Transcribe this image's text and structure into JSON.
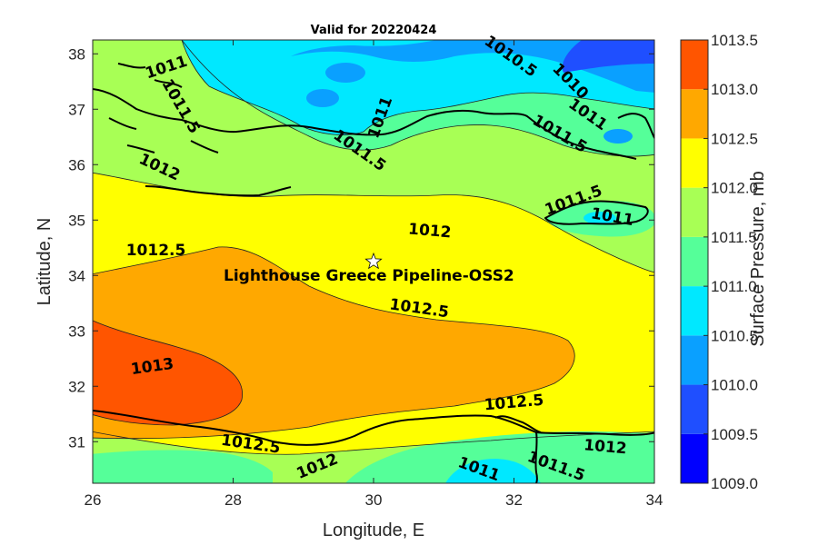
{
  "chart_data": {
    "type": "contour",
    "title": "Valid for 20220424",
    "xlabel": "Longitude, E",
    "ylabel": "Latitude, N",
    "colorbar_label": "Surface Pressure, mb",
    "xlim": [
      26,
      34
    ],
    "ylim": [
      30.25,
      38.25
    ],
    "xticks": [
      "26",
      "28",
      "30",
      "32",
      "34"
    ],
    "yticks": [
      "31",
      "32",
      "33",
      "34",
      "35",
      "36",
      "37",
      "38"
    ],
    "colorbar_ticks": [
      "1009.0",
      "1009.5",
      "1010.0",
      "1010.5",
      "1011.0",
      "1011.5",
      "1012.0",
      "1012.5",
      "1013.0",
      "1013.5"
    ],
    "levels": [
      1009.0,
      1009.5,
      1010.0,
      1010.5,
      1011.0,
      1011.5,
      1012.0,
      1012.5,
      1013.0,
      1013.5
    ],
    "level_colors": [
      "#0000ff",
      "#1f4fff",
      "#0aa0ff",
      "#00e8ff",
      "#55ff99",
      "#a8ff55",
      "#ffff00",
      "#ffa800",
      "#ff5500"
    ],
    "contour_labels": [
      {
        "text": "1011",
        "lon": 27.05,
        "lat": 37.75,
        "angle": -18
      },
      {
        "text": "1011.5",
        "lon": 27.25,
        "lat": 37.05,
        "angle": 60
      },
      {
        "text": "1011",
        "lon": 30.1,
        "lat": 36.85,
        "angle": -70
      },
      {
        "text": "1011.5",
        "lon": 29.8,
        "lat": 36.25,
        "angle": 35
      },
      {
        "text": "1010.5",
        "lon": 31.95,
        "lat": 37.95,
        "angle": 35
      },
      {
        "text": "1010",
        "lon": 32.8,
        "lat": 37.5,
        "angle": 45
      },
      {
        "text": "1011",
        "lon": 33.05,
        "lat": 36.9,
        "angle": 35
      },
      {
        "text": "1011.5",
        "lon": 32.65,
        "lat": 36.55,
        "angle": 30
      },
      {
        "text": "1012",
        "lon": 26.95,
        "lat": 35.95,
        "angle": 25
      },
      {
        "text": "1011.5",
        "lon": 32.85,
        "lat": 35.35,
        "angle": -20
      },
      {
        "text": "1011",
        "lon": 33.4,
        "lat": 35.05,
        "angle": 10
      },
      {
        "text": "1012",
        "lon": 30.8,
        "lat": 34.8,
        "angle": 5
      },
      {
        "text": "1012.5",
        "lon": 26.9,
        "lat": 34.45,
        "angle": 0
      },
      {
        "text": "1012.5",
        "lon": 30.65,
        "lat": 33.4,
        "angle": 8
      },
      {
        "text": "1013",
        "lon": 26.85,
        "lat": 32.35,
        "angle": -8
      },
      {
        "text": "1012.5",
        "lon": 32.0,
        "lat": 31.7,
        "angle": -5
      },
      {
        "text": "1012.5",
        "lon": 28.25,
        "lat": 30.95,
        "angle": 8
      },
      {
        "text": "1012",
        "lon": 29.2,
        "lat": 30.55,
        "angle": -22
      },
      {
        "text": "1011",
        "lon": 31.5,
        "lat": 30.5,
        "angle": 20
      },
      {
        "text": "1011.5",
        "lon": 32.6,
        "lat": 30.55,
        "angle": 20
      },
      {
        "text": "1012",
        "lon": 33.3,
        "lat": 30.9,
        "angle": 5
      }
    ],
    "marker": {
      "label": "Lighthouse Greece Pipeline-OSS2",
      "lon": 30.0,
      "lat": 34.25,
      "symbol": "star"
    }
  }
}
